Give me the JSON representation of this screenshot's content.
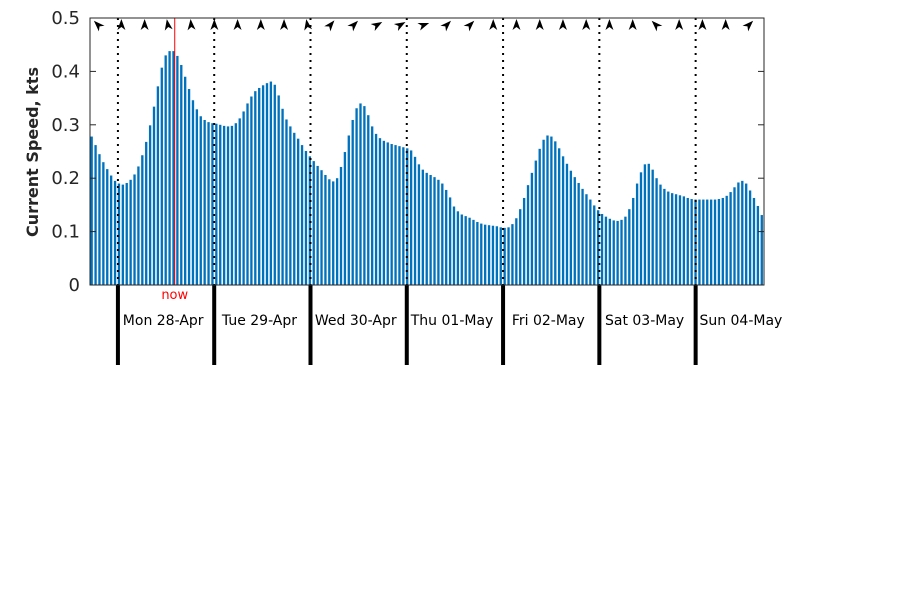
{
  "chart_data": {
    "type": "bar",
    "ylabel": "Current Speed, kts",
    "xlabel": "",
    "ylim": [
      0,
      0.5
    ],
    "yticks": [
      0,
      0.1,
      0.2,
      0.3,
      0.4,
      0.5
    ],
    "ytick_labels": [
      "0",
      "0.1",
      "0.2",
      "0.3",
      "0.4",
      "0.5"
    ],
    "grid": false,
    "bar_color": "#0072bd",
    "day_labels": [
      "Mon 28-Apr",
      "Tue 29-Apr",
      "Wed 30-Apr",
      "Thu 01-May",
      "Fri 02-May",
      "Sat 03-May",
      "Sun 04-May"
    ],
    "days_shown": 7,
    "start_offset_days": 0.29,
    "now_label": "now",
    "now_day_offset": 0.88,
    "now_color": "#ff0000",
    "values": [
      0.278,
      0.262,
      0.245,
      0.23,
      0.217,
      0.205,
      0.195,
      0.19,
      0.188,
      0.191,
      0.197,
      0.207,
      0.222,
      0.243,
      0.268,
      0.299,
      0.334,
      0.372,
      0.407,
      0.43,
      0.438,
      0.438,
      0.429,
      0.412,
      0.39,
      0.367,
      0.346,
      0.329,
      0.316,
      0.309,
      0.305,
      0.303,
      0.302,
      0.3,
      0.298,
      0.297,
      0.298,
      0.303,
      0.312,
      0.325,
      0.34,
      0.353,
      0.363,
      0.369,
      0.374,
      0.378,
      0.381,
      0.375,
      0.355,
      0.33,
      0.31,
      0.297,
      0.285,
      0.274,
      0.262,
      0.251,
      0.241,
      0.232,
      0.223,
      0.215,
      0.206,
      0.198,
      0.194,
      0.2,
      0.221,
      0.249,
      0.28,
      0.309,
      0.331,
      0.34,
      0.335,
      0.318,
      0.297,
      0.283,
      0.275,
      0.27,
      0.267,
      0.264,
      0.262,
      0.26,
      0.258,
      0.256,
      0.252,
      0.24,
      0.226,
      0.216,
      0.21,
      0.206,
      0.202,
      0.197,
      0.19,
      0.178,
      0.164,
      0.147,
      0.138,
      0.132,
      0.129,
      0.126,
      0.122,
      0.118,
      0.115,
      0.113,
      0.112,
      0.111,
      0.11,
      0.108,
      0.107,
      0.108,
      0.114,
      0.125,
      0.142,
      0.163,
      0.187,
      0.21,
      0.233,
      0.255,
      0.272,
      0.28,
      0.278,
      0.269,
      0.256,
      0.241,
      0.227,
      0.214,
      0.202,
      0.191,
      0.18,
      0.17,
      0.16,
      0.149,
      0.14,
      0.133,
      0.128,
      0.124,
      0.121,
      0.12,
      0.122,
      0.128,
      0.142,
      0.163,
      0.19,
      0.211,
      0.226,
      0.227,
      0.216,
      0.2,
      0.188,
      0.18,
      0.175,
      0.172,
      0.17,
      0.168,
      0.166,
      0.163,
      0.161,
      0.16,
      0.16,
      0.16,
      0.16,
      0.16,
      0.16,
      0.161,
      0.163,
      0.167,
      0.174,
      0.183,
      0.192,
      0.195,
      0.19,
      0.177,
      0.163,
      0.148,
      0.131
    ],
    "arrow_directions_deg": [
      -45,
      0,
      0,
      -10,
      -5,
      0,
      0,
      0,
      0,
      -10,
      40,
      45,
      60,
      60,
      70,
      45,
      45,
      0,
      0,
      0,
      0,
      0,
      0,
      0,
      -45,
      0,
      0,
      0,
      45
    ],
    "arrow_color": "#000000"
  }
}
